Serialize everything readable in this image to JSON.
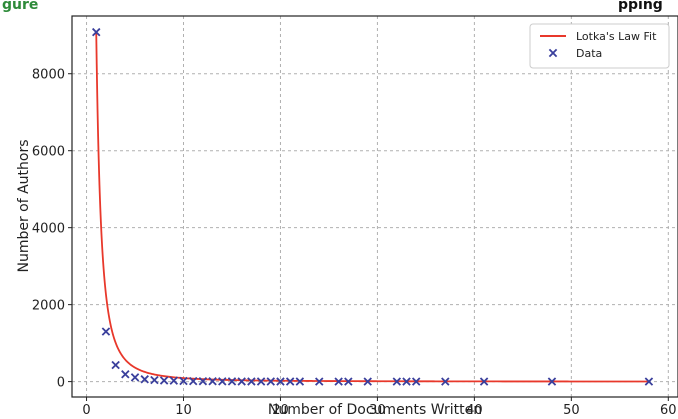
{
  "header": {
    "left_fragment": "gure",
    "right_fragment": "pping"
  },
  "colors": {
    "fit_line": "#e8382b",
    "data_marker": "#3a3f9c",
    "header_green": "#2e8b3a",
    "header_text": "#111111"
  },
  "chart_data": {
    "type": "scatter",
    "title": "",
    "xlabel": "Number of Documents Written",
    "ylabel": "Number of Authors",
    "xlim": [
      -1.5,
      61
    ],
    "ylim": [
      -400,
      9500
    ],
    "x_ticks": [
      0,
      10,
      20,
      30,
      40,
      50,
      60
    ],
    "y_ticks": [
      0,
      2000,
      4000,
      6000,
      8000
    ],
    "grid": true,
    "legend_position": "top-right",
    "series": [
      {
        "name": "Lotka's Law Fit",
        "kind": "line",
        "color": "#e8382b",
        "function": "y = 9080 / x^2",
        "x_range": [
          1,
          58
        ]
      },
      {
        "name": "Data",
        "kind": "scatter",
        "marker": "x",
        "color": "#3a3f9c",
        "points": [
          [
            1,
            9080
          ],
          [
            2,
            1300
          ],
          [
            3,
            430
          ],
          [
            4,
            190
          ],
          [
            5,
            110
          ],
          [
            6,
            60
          ],
          [
            7,
            40
          ],
          [
            8,
            30
          ],
          [
            9,
            25
          ],
          [
            10,
            15
          ],
          [
            11,
            12
          ],
          [
            12,
            10
          ],
          [
            13,
            8
          ],
          [
            14,
            6
          ],
          [
            15,
            5
          ],
          [
            16,
            4
          ],
          [
            17,
            4
          ],
          [
            18,
            3
          ],
          [
            19,
            3
          ],
          [
            20,
            2
          ],
          [
            21,
            2
          ],
          [
            22,
            2
          ],
          [
            24,
            1
          ],
          [
            26,
            1
          ],
          [
            27,
            1
          ],
          [
            29,
            1
          ],
          [
            32,
            1
          ],
          [
            33,
            1
          ],
          [
            34,
            1
          ],
          [
            37,
            1
          ],
          [
            41,
            1
          ],
          [
            48,
            1
          ],
          [
            58,
            1
          ]
        ]
      }
    ]
  }
}
